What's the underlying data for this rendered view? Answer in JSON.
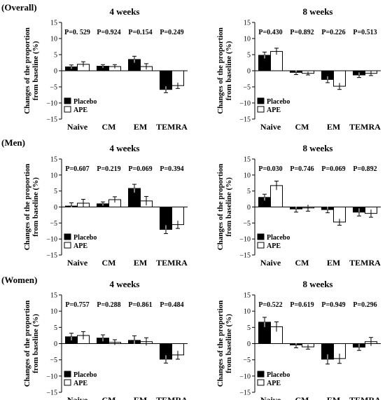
{
  "groups": [
    {
      "label": "(Overall)"
    },
    {
      "label": "(Men)"
    },
    {
      "label": "(Women)"
    }
  ],
  "axis": {
    "ylabel_line1": "Changes of the proportion",
    "ylabel_line2": "from baseline (%)",
    "ticks": [
      "15",
      "10",
      "5",
      "0",
      "−5",
      "−10",
      "−15"
    ]
  },
  "legend": {
    "placebo": "Placebo",
    "ape": "APE"
  },
  "colors": {
    "placebo": "#000000",
    "ape": "#ffffff",
    "stroke": "#000000"
  },
  "chart_data": [
    {
      "type": "bar",
      "group": "(Overall)",
      "title": "4 weeks",
      "categories": [
        "Naive",
        "CM",
        "EM",
        "TEMRA"
      ],
      "ylim": [
        -15,
        15
      ],
      "grid": false,
      "legend_position": "bottom-left",
      "series": [
        {
          "name": "Placebo",
          "values": [
            1.2,
            1.4,
            3.5,
            -5.8
          ],
          "errors": [
            0.6,
            0.5,
            1.0,
            1.0
          ]
        },
        {
          "name": "APE",
          "values": [
            2.0,
            1.3,
            1.3,
            -4.6
          ],
          "errors": [
            0.8,
            0.6,
            0.9,
            0.9
          ]
        }
      ],
      "p_values": [
        "P=0. 529",
        "P=0.924",
        "P=0.154",
        "P=0.249"
      ]
    },
    {
      "type": "bar",
      "group": "(Overall)",
      "title": "8 weeks",
      "categories": [
        "Naive",
        "CM",
        "EM",
        "TEMRA"
      ],
      "ylim": [
        -15,
        15
      ],
      "grid": false,
      "legend_position": "bottom-left",
      "series": [
        {
          "name": "Placebo",
          "values": [
            4.8,
            -0.5,
            -2.7,
            -1.3
          ],
          "errors": [
            1.0,
            0.7,
            1.0,
            0.8
          ]
        },
        {
          "name": "APE",
          "values": [
            6.0,
            -0.8,
            -4.8,
            -0.8
          ],
          "errors": [
            1.0,
            0.5,
            1.0,
            0.7
          ]
        }
      ],
      "p_values": [
        "P=0.430",
        "P=0.892",
        "P=0.226",
        "P=0.513"
      ]
    },
    {
      "type": "bar",
      "group": "(Men)",
      "title": "4 weeks",
      "categories": [
        "Naive",
        "CM",
        "EM",
        "TEMRA"
      ],
      "ylim": [
        -15,
        15
      ],
      "grid": false,
      "legend_position": "bottom-left",
      "series": [
        {
          "name": "Placebo",
          "values": [
            0.3,
            1.0,
            5.8,
            -7.0
          ],
          "errors": [
            1.0,
            0.6,
            1.3,
            1.3
          ]
        },
        {
          "name": "APE",
          "values": [
            1.2,
            2.3,
            1.9,
            -5.5
          ],
          "errors": [
            1.2,
            0.9,
            1.4,
            1.2
          ]
        }
      ],
      "p_values": [
        "P=0.607",
        "P=0.219",
        "P=0.069",
        "P=0.394"
      ]
    },
    {
      "type": "bar",
      "group": "(Men)",
      "title": "8 weeks",
      "categories": [
        "Naive",
        "CM",
        "EM",
        "TEMRA"
      ],
      "ylim": [
        -15,
        15
      ],
      "grid": false,
      "legend_position": "bottom-left",
      "series": [
        {
          "name": "Placebo",
          "values": [
            3.0,
            -0.6,
            -0.8,
            -1.6
          ],
          "errors": [
            1.0,
            1.0,
            1.0,
            1.2
          ]
        },
        {
          "name": "APE",
          "values": [
            6.7,
            -0.3,
            -4.7,
            -2.0
          ],
          "errors": [
            1.4,
            1.0,
            1.0,
            1.2
          ]
        }
      ],
      "p_values": [
        "P=0.030",
        "P=0.746",
        "P=0.069",
        "P=0.892"
      ]
    },
    {
      "type": "bar",
      "group": "(Women)",
      "title": "4 weeks",
      "categories": [
        "Naive",
        "CM",
        "EM",
        "TEMRA"
      ],
      "ylim": [
        -15,
        15
      ],
      "grid": false,
      "legend_position": "bottom-left",
      "series": [
        {
          "name": "Placebo",
          "values": [
            2.1,
            1.7,
            1.0,
            -4.8
          ],
          "errors": [
            1.1,
            1.0,
            1.4,
            1.2
          ]
        },
        {
          "name": "APE",
          "values": [
            2.5,
            0.4,
            0.6,
            -3.5
          ],
          "errors": [
            1.2,
            0.8,
            1.2,
            1.3
          ]
        }
      ],
      "p_values": [
        "P=0.757",
        "P=0.288",
        "P=0.861",
        "P=0.484"
      ]
    },
    {
      "type": "bar",
      "group": "(Women)",
      "title": "8 weeks",
      "categories": [
        "Naive",
        "CM",
        "EM",
        "TEMRA"
      ],
      "ylim": [
        -15,
        15
      ],
      "grid": false,
      "legend_position": "bottom-left",
      "series": [
        {
          "name": "Placebo",
          "values": [
            6.6,
            -0.4,
            -4.8,
            -1.1
          ],
          "errors": [
            1.5,
            0.9,
            1.5,
            1.0
          ]
        },
        {
          "name": "APE",
          "values": [
            5.2,
            -1.0,
            -4.6,
            0.6
          ],
          "errors": [
            1.5,
            0.7,
            1.5,
            1.3
          ]
        }
      ],
      "p_values": [
        "P=0.522",
        "P=0.619",
        "P=0.949",
        "P=0.296"
      ]
    }
  ]
}
